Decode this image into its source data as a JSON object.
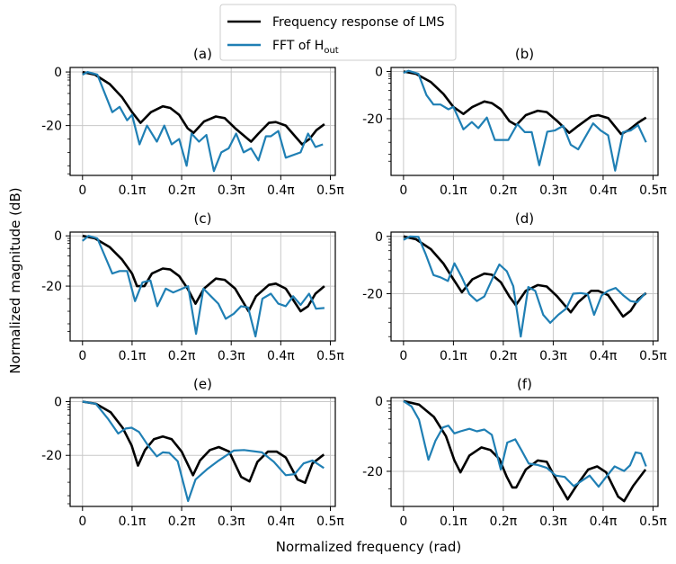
{
  "figure": {
    "ylabel": "Normalized magnitude (dB)",
    "xlabel": "Normalized frequency (rad)",
    "legend": [
      {
        "label": "Frequency response of LMS",
        "color": "#000000"
      },
      {
        "label": "FFT of H",
        "sub": "out",
        "color": "#1f7fb4"
      }
    ],
    "legend_placement": "top-center"
  },
  "chart_data": [
    {
      "type": "line",
      "title": "(a)",
      "xlim": [
        -0.025,
        0.51
      ],
      "ylim": [
        -38.6,
        1.7
      ],
      "xticks": [
        0,
        0.1,
        0.2,
        0.3,
        0.4,
        0.5
      ],
      "xticklabels": [
        "0",
        "0.1π",
        "0.2π",
        "0.3π",
        "0.4π",
        "0.5π"
      ],
      "yticks": [
        0,
        -20
      ],
      "yticklabels": [
        "0",
        "-20"
      ],
      "series": [
        {
          "name": "Frequency response of LMS",
          "x": [
            0,
            0.025,
            0.055,
            0.08,
            0.1,
            0.117,
            0.138,
            0.162,
            0.177,
            0.195,
            0.212,
            0.224,
            0.245,
            0.269,
            0.287,
            0.308,
            0.34,
            0.355,
            0.376,
            0.39,
            0.41,
            0.443,
            0.458,
            0.472,
            0.488
          ],
          "y": [
            0,
            -1,
            -4.5,
            -9.5,
            -15,
            -19,
            -15,
            -12.8,
            -13.4,
            -16,
            -21,
            -22.7,
            -18.5,
            -16.6,
            -17.2,
            -21,
            -26,
            -23,
            -19,
            -18.7,
            -20,
            -27,
            -25,
            -21.7,
            -19.5
          ]
        },
        {
          "name": "FFT of Hout",
          "x": [
            0,
            0.01,
            0.03,
            0.06,
            0.075,
            0.09,
            0.1,
            0.115,
            0.13,
            0.15,
            0.165,
            0.18,
            0.195,
            0.21,
            0.22,
            0.235,
            0.25,
            0.265,
            0.28,
            0.295,
            0.31,
            0.325,
            0.34,
            0.355,
            0.37,
            0.38,
            0.395,
            0.41,
            0.44,
            0.455,
            0.47,
            0.485
          ],
          "y": [
            -1,
            0,
            -1,
            -15,
            -13,
            -18,
            -16,
            -27,
            -20,
            -26,
            -20,
            -27,
            -25,
            -35,
            -23,
            -26,
            -23.5,
            -37,
            -30,
            -28.5,
            -23,
            -30,
            -28.5,
            -33,
            -24,
            -24,
            -22,
            -32,
            -30,
            -23,
            -28,
            -27
          ]
        }
      ]
    },
    {
      "type": "line",
      "title": "(b)",
      "xlim": [
        -0.025,
        0.51
      ],
      "ylim": [
        -44,
        1.7
      ],
      "xticks": [
        0,
        0.1,
        0.2,
        0.3,
        0.4,
        0.5
      ],
      "xticklabels": [
        "0",
        "0.1π",
        "0.2π",
        "0.3π",
        "0.4π",
        "0.5π"
      ],
      "yticks": [
        0,
        -20
      ],
      "yticklabels": [
        "0",
        "-20"
      ],
      "series": [
        {
          "name": "Frequency response of LMS",
          "x": [
            0,
            0.025,
            0.055,
            0.08,
            0.1,
            0.12,
            0.138,
            0.162,
            0.177,
            0.195,
            0.212,
            0.226,
            0.245,
            0.269,
            0.287,
            0.308,
            0.332,
            0.35,
            0.376,
            0.39,
            0.41,
            0.436,
            0.45,
            0.47,
            0.486
          ],
          "y": [
            0,
            -1,
            -4.5,
            -9.5,
            -15,
            -18,
            -15,
            -12.7,
            -13.4,
            -16,
            -21,
            -22.7,
            -18.5,
            -16.6,
            -17.2,
            -21,
            -26,
            -23,
            -19,
            -18.5,
            -19.7,
            -26.5,
            -25,
            -21.7,
            -19.5
          ]
        },
        {
          "name": "FFT of Hout",
          "x": [
            0,
            0.01,
            0.03,
            0.046,
            0.06,
            0.074,
            0.09,
            0.1,
            0.12,
            0.137,
            0.15,
            0.167,
            0.183,
            0.21,
            0.228,
            0.243,
            0.257,
            0.272,
            0.288,
            0.303,
            0.32,
            0.335,
            0.35,
            0.38,
            0.395,
            0.41,
            0.424,
            0.44,
            0.455,
            0.47,
            0.486
          ],
          "y": [
            -0.6,
            0.3,
            -1,
            -10,
            -14,
            -14,
            -16,
            -15,
            -24.5,
            -21.4,
            -24,
            -19.5,
            -29,
            -29,
            -22.3,
            -25.7,
            -25.7,
            -39.7,
            -25.5,
            -25,
            -23,
            -31,
            -33,
            -22,
            -25,
            -27,
            -42,
            -25.7,
            -25,
            -22.7,
            -30
          ]
        }
      ]
    },
    {
      "type": "line",
      "title": "(c)",
      "xlim": [
        -0.025,
        0.51
      ],
      "ylim": [
        -41.8,
        1.5
      ],
      "xticks": [
        0,
        0.1,
        0.2,
        0.3,
        0.4,
        0.5
      ],
      "xticklabels": [
        "0",
        "0.1π",
        "0.2π",
        "0.3π",
        "0.4π",
        "0.5π"
      ],
      "yticks": [
        0,
        -20
      ],
      "yticklabels": [
        "0",
        "-20"
      ],
      "series": [
        {
          "name": "Frequency response of LMS",
          "x": [
            0,
            0.025,
            0.055,
            0.08,
            0.1,
            0.11,
            0.125,
            0.14,
            0.162,
            0.177,
            0.195,
            0.212,
            0.228,
            0.245,
            0.269,
            0.287,
            0.308,
            0.335,
            0.35,
            0.376,
            0.39,
            0.41,
            0.44,
            0.455,
            0.47,
            0.488
          ],
          "y": [
            0,
            -1,
            -4.5,
            -9.5,
            -15,
            -20,
            -20,
            -15,
            -13,
            -13.4,
            -16,
            -21,
            -27,
            -21,
            -17,
            -17.5,
            -21,
            -30,
            -24,
            -19.5,
            -19,
            -21,
            -30,
            -28,
            -23,
            -20
          ]
        },
        {
          "name": "FFT of Hout",
          "x": [
            0,
            0.012,
            0.03,
            0.045,
            0.06,
            0.075,
            0.09,
            0.106,
            0.121,
            0.137,
            0.151,
            0.168,
            0.183,
            0.213,
            0.229,
            0.244,
            0.259,
            0.274,
            0.289,
            0.305,
            0.32,
            0.334,
            0.349,
            0.363,
            0.38,
            0.395,
            0.41,
            0.425,
            0.44,
            0.457,
            0.471,
            0.488
          ],
          "y": [
            -2,
            0,
            -1,
            -8,
            -15,
            -14,
            -14,
            -26,
            -18.5,
            -17.7,
            -28,
            -21,
            -22.5,
            -20,
            -39,
            -21,
            -24,
            -27,
            -33,
            -31,
            -28,
            -28.5,
            -40,
            -25,
            -23,
            -27,
            -28,
            -24,
            -27.5,
            -23,
            -29,
            -28.7
          ]
        }
      ]
    },
    {
      "type": "line",
      "title": "(d)",
      "xlim": [
        -0.025,
        0.51
      ],
      "ylim": [
        -36.5,
        1.5
      ],
      "xticks": [
        0,
        0.1,
        0.2,
        0.3,
        0.4,
        0.5
      ],
      "xticklabels": [
        "0",
        "0.1π",
        "0.2π",
        "0.3π",
        "0.4π",
        "0.5π"
      ],
      "yticks": [
        0,
        -20
      ],
      "yticklabels": [
        "0",
        "-20"
      ],
      "series": [
        {
          "name": "Frequency response of LMS",
          "x": [
            0,
            0.025,
            0.055,
            0.08,
            0.1,
            0.117,
            0.138,
            0.162,
            0.177,
            0.195,
            0.212,
            0.225,
            0.245,
            0.269,
            0.287,
            0.308,
            0.335,
            0.35,
            0.376,
            0.39,
            0.41,
            0.44,
            0.455,
            0.47,
            0.486
          ],
          "y": [
            0,
            -1,
            -4.5,
            -9.5,
            -15,
            -19.5,
            -15,
            -13,
            -13.4,
            -16,
            -21,
            -24,
            -19,
            -17,
            -17.5,
            -21,
            -26.5,
            -23,
            -19,
            -19,
            -20.5,
            -28,
            -26,
            -22,
            -19.8
          ]
        },
        {
          "name": "FFT of Hout",
          "x": [
            0,
            0.013,
            0.03,
            0.044,
            0.06,
            0.074,
            0.089,
            0.102,
            0.117,
            0.132,
            0.147,
            0.162,
            0.178,
            0.192,
            0.207,
            0.22,
            0.235,
            0.25,
            0.264,
            0.28,
            0.294,
            0.31,
            0.326,
            0.34,
            0.355,
            0.369,
            0.382,
            0.397,
            0.41,
            0.425,
            0.44,
            0.455,
            0.468,
            0.485
          ],
          "y": [
            -1.2,
            0,
            -0.2,
            -6,
            -13.5,
            -14.3,
            -15.6,
            -9.4,
            -14.3,
            -20.2,
            -22.6,
            -21,
            -14.8,
            -9.8,
            -12.2,
            -17.4,
            -35,
            -17.7,
            -19,
            -27.4,
            -30.2,
            -27.4,
            -25.2,
            -20,
            -19.8,
            -20.2,
            -27.4,
            -20.6,
            -19,
            -18,
            -20.5,
            -22.6,
            -23,
            -19.8
          ]
        }
      ]
    },
    {
      "type": "line",
      "title": "(e)",
      "xlim": [
        -0.025,
        0.51
      ],
      "ylim": [
        -39,
        1.5
      ],
      "xticks": [
        0,
        0.1,
        0.2,
        0.3,
        0.4,
        0.5
      ],
      "xticklabels": [
        "0",
        "0.1π",
        "0.2π",
        "0.3π",
        "0.4π",
        "0.5π"
      ],
      "yticks": [
        0,
        -20
      ],
      "yticklabels": [
        "0",
        "-20"
      ],
      "series": [
        {
          "name": "Frequency response of LMS",
          "x": [
            0,
            0.027,
            0.057,
            0.081,
            0.099,
            0.112,
            0.126,
            0.144,
            0.162,
            0.18,
            0.2,
            0.223,
            0.237,
            0.257,
            0.275,
            0.296,
            0.32,
            0.337,
            0.353,
            0.374,
            0.392,
            0.41,
            0.434,
            0.449,
            0.464,
            0.487
          ],
          "y": [
            0,
            -0.8,
            -4,
            -9.7,
            -16.3,
            -23.8,
            -18,
            -14,
            -13,
            -14,
            -18.6,
            -27.4,
            -21.9,
            -18,
            -16.9,
            -18.6,
            -28,
            -29.7,
            -22.4,
            -18.6,
            -18.6,
            -20.8,
            -29,
            -30.2,
            -23,
            -19.7
          ]
        },
        {
          "name": "FFT of Hout",
          "x": [
            0,
            0.027,
            0.051,
            0.072,
            0.087,
            0.099,
            0.114,
            0.132,
            0.15,
            0.162,
            0.175,
            0.192,
            0.213,
            0.228,
            0.251,
            0.275,
            0.305,
            0.326,
            0.362,
            0.386,
            0.41,
            0.428,
            0.446,
            0.464,
            0.487
          ],
          "y": [
            0,
            -0.8,
            -6.3,
            -11.9,
            -10,
            -9.7,
            -11.3,
            -16.3,
            -20.4,
            -18.9,
            -19.1,
            -22.2,
            -37,
            -29,
            -25.2,
            -21.9,
            -18.2,
            -18,
            -18.9,
            -22.4,
            -27.4,
            -27,
            -23,
            -21.9,
            -24.7
          ]
        }
      ]
    },
    {
      "type": "line",
      "title": "(f)",
      "xlim": [
        -0.025,
        0.51
      ],
      "ylim": [
        -30,
        1
      ],
      "xticks": [
        0,
        0.1,
        0.2,
        0.3,
        0.4,
        0.5
      ],
      "xticklabels": [
        "0",
        "0.1π",
        "0.2π",
        "0.3π",
        "0.4π",
        "0.5π"
      ],
      "yticks": [
        0,
        -20
      ],
      "yticklabels": [
        "0",
        "-20"
      ],
      "series": [
        {
          "name": "Frequency response of LMS",
          "x": [
            0,
            0.031,
            0.061,
            0.085,
            0.102,
            0.114,
            0.132,
            0.156,
            0.174,
            0.192,
            0.207,
            0.218,
            0.226,
            0.245,
            0.269,
            0.287,
            0.308,
            0.329,
            0.346,
            0.37,
            0.388,
            0.406,
            0.43,
            0.442,
            0.46,
            0.485
          ],
          "y": [
            0,
            -1,
            -4.5,
            -10,
            -16.9,
            -20.3,
            -15.5,
            -13.2,
            -13.9,
            -16.5,
            -21.6,
            -24.6,
            -24.6,
            -19.5,
            -16.9,
            -17.3,
            -22.9,
            -28,
            -24.2,
            -19.5,
            -18.6,
            -20.3,
            -27.2,
            -28.5,
            -24.2,
            -19.5
          ]
        },
        {
          "name": "FFT of Hout",
          "x": [
            0,
            0.016,
            0.031,
            0.05,
            0.064,
            0.079,
            0.09,
            0.102,
            0.114,
            0.132,
            0.147,
            0.162,
            0.177,
            0.195,
            0.208,
            0.224,
            0.236,
            0.251,
            0.269,
            0.287,
            0.305,
            0.323,
            0.341,
            0.355,
            0.373,
            0.391,
            0.406,
            0.423,
            0.442,
            0.454,
            0.465,
            0.476,
            0.486
          ],
          "y": [
            0,
            -1.5,
            -5.3,
            -16.7,
            -11.3,
            -7.5,
            -7,
            -9.2,
            -8.6,
            -7.9,
            -8.6,
            -8.1,
            -9.6,
            -19.5,
            -11.8,
            -10.9,
            -13.9,
            -17.8,
            -18.2,
            -19,
            -21.2,
            -21.6,
            -24.2,
            -22.9,
            -21.2,
            -24.4,
            -21.6,
            -18.6,
            -19.9,
            -18.3,
            -14.6,
            -14.9,
            -18.6
          ]
        }
      ]
    }
  ]
}
